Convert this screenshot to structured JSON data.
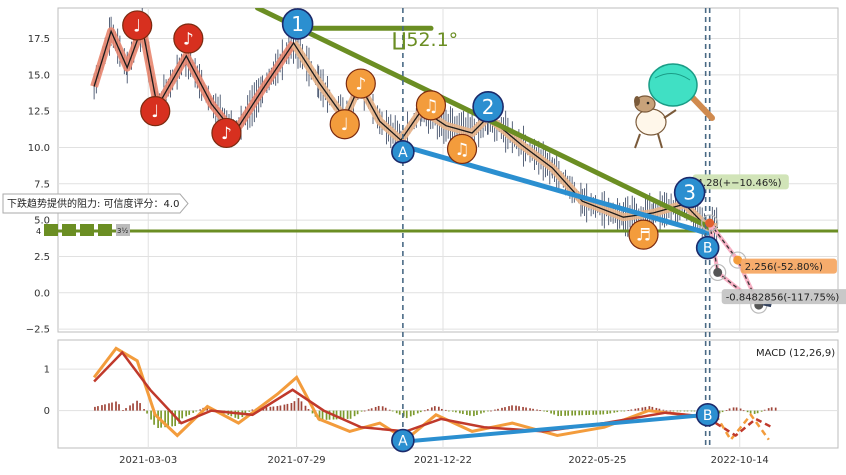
{
  "chart_data": {
    "type": "candlestick-with-annotations",
    "price_panel": {
      "y_ticks": [
        "17.5",
        "15.0",
        "12.5",
        "10.0",
        "7.5",
        "5.0",
        "2.5",
        "0.0",
        "−2.5"
      ],
      "y_tick_values": [
        17.5,
        15.0,
        12.5,
        10.0,
        7.5,
        5.0,
        2.5,
        0.0,
        -2.5
      ],
      "ylim": [
        -2.7,
        19.6
      ],
      "x_ticks": [
        "2021-03-03",
        "2021-07-29",
        "2021-12-22",
        "2022-05-25",
        "2022-10-14"
      ],
      "x_tick_values": [
        "2021-03-03",
        "2021-07-29",
        "2021-12-22",
        "2022-05-25",
        "2022-10-14"
      ],
      "xlim": [
        "2020-12-03",
        "2023-01-20"
      ],
      "price_path": [
        [
          "2021-01-08",
          14.2
        ],
        [
          "2021-01-25",
          18.0
        ],
        [
          "2021-02-10",
          15.5
        ],
        [
          "2021-02-25",
          18.3
        ],
        [
          "2021-03-12",
          12.8
        ],
        [
          "2021-04-10",
          16.3
        ],
        [
          "2021-05-05",
          13.0
        ],
        [
          "2021-05-28",
          11.0
        ],
        [
          "2021-06-25",
          14.0
        ],
        [
          "2021-07-26",
          17.2
        ],
        [
          "2021-08-20",
          14.5
        ],
        [
          "2021-09-15",
          12.0
        ],
        [
          "2021-09-30",
          14.3
        ],
        [
          "2021-10-20",
          11.8
        ],
        [
          "2021-11-10",
          10.5
        ],
        [
          "2021-12-01",
          12.6
        ],
        [
          "2021-12-25",
          11.5
        ],
        [
          "2022-01-20",
          11.0
        ],
        [
          "2022-02-05",
          12.1
        ],
        [
          "2022-03-10",
          10.2
        ],
        [
          "2022-04-10",
          8.6
        ],
        [
          "2022-05-10",
          6.3
        ],
        [
          "2022-06-20",
          5.2
        ],
        [
          "2022-07-20",
          5.5
        ],
        [
          "2022-08-20",
          6.1
        ],
        [
          "2022-09-10",
          4.6
        ],
        [
          "2022-09-22",
          4.5
        ]
      ],
      "support_line_value": 4.25,
      "vertical_markers": [
        "2021-11-12",
        "2022-09-10",
        "2022-09-14"
      ],
      "trend_lines": [
        {
          "color": "#6b8e23",
          "points": [
            [
              "2021-06-20",
              19.6
            ],
            [
              "2022-09-14",
              4.5
            ]
          ]
        },
        {
          "color": "#6b8e23",
          "points": [
            [
              "2021-08-10",
              18.2
            ],
            [
              "2021-12-10",
              18.2
            ]
          ]
        },
        {
          "color": "#2b8fd0",
          "points": [
            [
              "2021-11-12",
              10.1
            ],
            [
              "2022-09-12",
              4.1
            ]
          ]
        }
      ],
      "angle_label": "∐52.1°",
      "music_markers": [
        {
          "date": "2021-02-20",
          "value": 18.4,
          "symbol": "♩",
          "color": "#d7301f"
        },
        {
          "date": "2021-03-10",
          "value": 12.5,
          "symbol": "♩",
          "color": "#d7301f"
        },
        {
          "date": "2021-04-12",
          "value": 17.5,
          "symbol": "♪",
          "color": "#d7301f"
        },
        {
          "date": "2021-05-20",
          "value": 11.0,
          "symbol": "♪",
          "color": "#d7301f"
        },
        {
          "date": "2021-09-15",
          "value": 11.6,
          "symbol": "♩",
          "color": "#f39c3c"
        },
        {
          "date": "2021-10-01",
          "value": 14.4,
          "symbol": "♪",
          "color": "#f39c3c"
        },
        {
          "date": "2021-12-10",
          "value": 12.9,
          "symbol": "♫",
          "color": "#f39c3c"
        },
        {
          "date": "2022-01-10",
          "value": 9.9,
          "symbol": "♫",
          "color": "#f39c3c"
        },
        {
          "date": "2022-07-10",
          "value": 4.0,
          "symbol": "♬",
          "color": "#f39c3c"
        }
      ],
      "wave_markers": [
        {
          "label": "1",
          "date": "2021-07-30",
          "value": 18.5,
          "color": "#2b8fd0"
        },
        {
          "label": "2",
          "date": "2022-02-05",
          "value": 12.8,
          "color": "#2b8fd0"
        },
        {
          "label": "3",
          "date": "2022-08-25",
          "value": 6.9,
          "color": "#2b8fd0"
        },
        {
          "label": "A",
          "date": "2021-11-12",
          "value": 9.7,
          "color": "#2b8fd0"
        },
        {
          "label": "B",
          "date": "2022-09-12",
          "value": 3.1,
          "color": "#2b8fd0"
        }
      ],
      "projection_points": [
        {
          "date": "2022-09-14",
          "value": 4.8,
          "color": "#e0602f"
        },
        {
          "date": "2022-10-12",
          "value": 2.25,
          "color": "#f39c3c"
        },
        {
          "date": "2022-09-22",
          "value": 1.4,
          "color": "#555555"
        },
        {
          "date": "2022-11-02",
          "value": -0.85,
          "color": "#555555"
        }
      ],
      "callouts": [
        {
          "text": "4.28(+−10.46%)",
          "bg": "#cfe3b4",
          "date": "2022-08-28",
          "value": 7.6
        },
        {
          "text": "2.256(-52.80%)",
          "bg": "#f5a864",
          "date": "2022-10-15",
          "value": 1.8
        },
        {
          "text": "-0.8482856(-117.75%)",
          "bg": "#c5c5c5",
          "date": "2022-09-26",
          "value": -0.3
        }
      ],
      "resistance_note": "下跌趋势提供的阻力: 可信度评分：4.0",
      "badge_label": "4",
      "tiny_label": "3½"
    },
    "macd_panel": {
      "title": "MACD (12,26,9)",
      "y_ticks": [
        "1",
        "0"
      ],
      "y_tick_values": [
        1,
        0
      ],
      "ylim": [
        -0.9,
        1.7
      ],
      "macd_line": [
        [
          "2021-01-08",
          0.8
        ],
        [
          "2021-01-30",
          1.5
        ],
        [
          "2021-02-20",
          1.2
        ],
        [
          "2021-03-10",
          -0.1
        ],
        [
          "2021-04-01",
          -0.6
        ],
        [
          "2021-05-01",
          0.1
        ],
        [
          "2021-06-01",
          -0.3
        ],
        [
          "2021-07-10",
          0.4
        ],
        [
          "2021-07-29",
          0.8
        ],
        [
          "2021-08-20",
          -0.2
        ],
        [
          "2021-09-20",
          -0.5
        ],
        [
          "2021-10-20",
          -0.3
        ],
        [
          "2021-11-15",
          -0.7
        ],
        [
          "2021-12-15",
          -0.1
        ],
        [
          "2022-01-20",
          -0.5
        ],
        [
          "2022-03-01",
          -0.3
        ],
        [
          "2022-04-15",
          -0.6
        ],
        [
          "2022-06-01",
          -0.4
        ],
        [
          "2022-07-15",
          0.0
        ],
        [
          "2022-08-20",
          -0.1
        ],
        [
          "2022-09-12",
          -0.2
        ]
      ],
      "signal_line": [
        [
          "2021-01-08",
          0.7
        ],
        [
          "2021-02-05",
          1.4
        ],
        [
          "2021-03-05",
          0.5
        ],
        [
          "2021-04-05",
          -0.3
        ],
        [
          "2021-05-05",
          0.0
        ],
        [
          "2021-06-15",
          -0.1
        ],
        [
          "2021-07-25",
          0.5
        ],
        [
          "2021-08-25",
          0.0
        ],
        [
          "2021-10-01",
          -0.4
        ],
        [
          "2021-11-15",
          -0.5
        ],
        [
          "2021-12-20",
          -0.2
        ],
        [
          "2022-02-01",
          -0.4
        ],
        [
          "2022-04-01",
          -0.5
        ],
        [
          "2022-06-01",
          -0.3
        ],
        [
          "2022-08-01",
          -0.05
        ],
        [
          "2022-09-12",
          -0.15
        ]
      ],
      "blue_line": [
        [
          "2021-11-12",
          -0.75
        ],
        [
          "2022-09-12",
          -0.1
        ]
      ],
      "wave_markers": [
        {
          "label": "A",
          "date": "2021-11-12",
          "value": -0.72
        },
        {
          "label": "B",
          "date": "2022-09-12",
          "value": -0.1
        }
      ],
      "projected_lines": [
        {
          "color": "#f39c3c",
          "points": [
            [
              "2022-09-20",
              -0.1
            ],
            [
              "2022-10-05",
              -0.7
            ],
            [
              "2022-10-25",
              -0.1
            ],
            [
              "2022-11-12",
              -0.7
            ]
          ]
        },
        {
          "color": "#c0392b",
          "points": [
            [
              "2022-09-20",
              -0.3
            ],
            [
              "2022-10-10",
              -0.6
            ],
            [
              "2022-10-30",
              -0.2
            ],
            [
              "2022-11-15",
              -0.4
            ]
          ]
        }
      ]
    }
  }
}
